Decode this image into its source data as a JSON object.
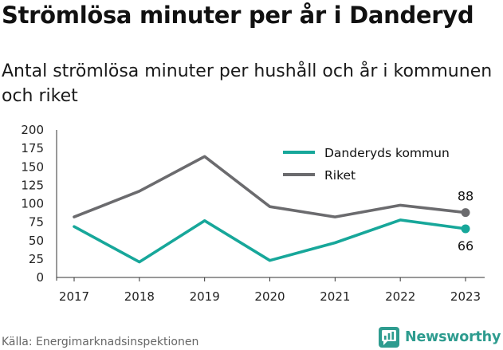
{
  "title": "Strömlösa minuter per år i Danderyd",
  "subtitle": "Antal strömlösa minuter per hushåll och år i kommunen och riket",
  "footer": {
    "source": "Källa: Energimarknadsinspektionen",
    "brand": "Newsworthy"
  },
  "colors": {
    "danderyd": "#17a79a",
    "riket": "#6b6b6e",
    "axis": "#333333",
    "brand": "#2e9c8f"
  },
  "chart_data": {
    "type": "line",
    "title": "Strömlösa minuter per år i Danderyd",
    "subtitle": "Antal strömlösa minuter per hushåll och år i kommunen och riket",
    "x": [
      "2017",
      "2018",
      "2019",
      "2020",
      "2021",
      "2022",
      "2023"
    ],
    "y_ticks": [
      "0",
      "25",
      "50",
      "75",
      "100",
      "125",
      "150",
      "175",
      "200"
    ],
    "ylim": [
      0,
      200
    ],
    "grid": false,
    "legend_position": "top-right",
    "series": [
      {
        "key": "danderyd",
        "name": "Danderyds kommun",
        "color": "#17a79a",
        "values": [
          69,
          21,
          77,
          23,
          47,
          78,
          66
        ],
        "last_value_label": "66"
      },
      {
        "key": "riket",
        "name": "Riket",
        "color": "#6b6b6e",
        "values": [
          82,
          117,
          164,
          96,
          82,
          98,
          88
        ],
        "last_value_label": "88"
      }
    ]
  }
}
